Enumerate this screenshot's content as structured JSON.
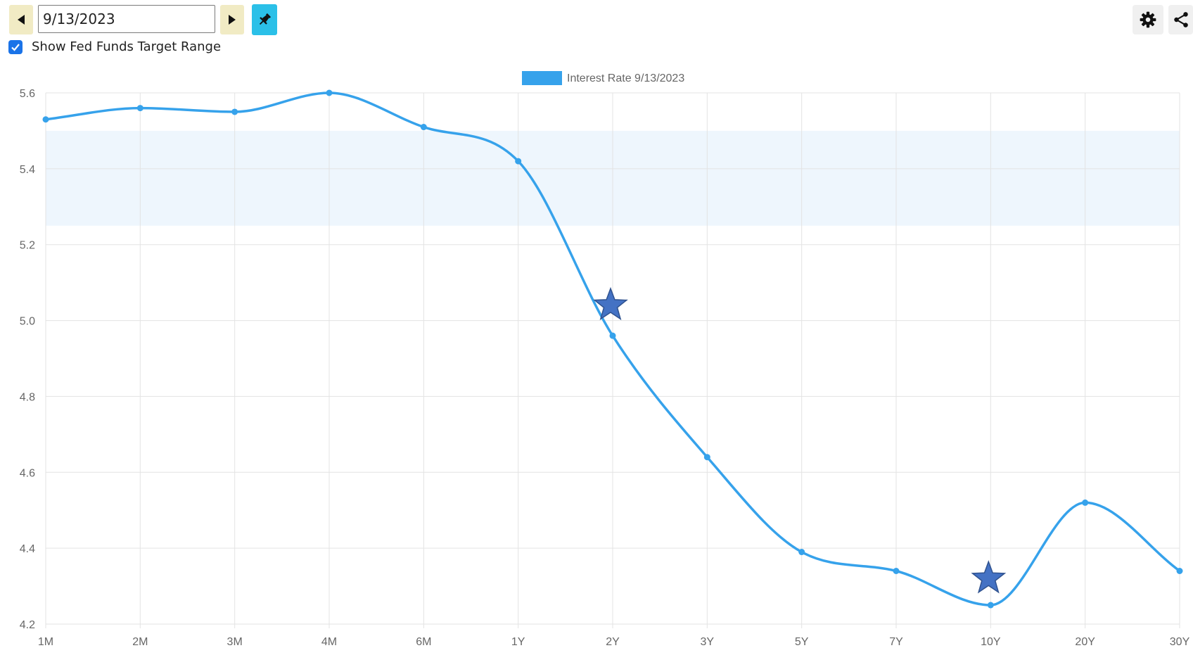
{
  "toolbar": {
    "date_value": "9/13/2023",
    "checkbox_label": "Show Fed Funds Target Range",
    "checkbox_checked": true,
    "nav_color": "#f1ebc4",
    "pin_color": "#2bc0e8"
  },
  "chart_data": {
    "type": "line",
    "categories": [
      "1M",
      "2M",
      "3M",
      "4M",
      "6M",
      "1Y",
      "2Y",
      "3Y",
      "5Y",
      "7Y",
      "10Y",
      "20Y",
      "30Y"
    ],
    "series": [
      {
        "name": "Interest Rate 9/13/2023",
        "values": [
          5.53,
          5.56,
          5.55,
          5.6,
          5.51,
          5.42,
          4.96,
          4.64,
          4.39,
          4.34,
          4.25,
          4.52,
          4.34
        ],
        "color": "#36a2eb"
      }
    ],
    "y_ticks": [
      "5.6",
      "5.4",
      "5.2",
      "5.0",
      "4.8",
      "4.6",
      "4.4",
      "4.2"
    ],
    "ylim": [
      4.2,
      5.6
    ],
    "grid": true,
    "legend_position": "top-center",
    "fed_funds_target_range": [
      5.25,
      5.5
    ],
    "band_color": "#eef6fd",
    "star_markers": [
      {
        "category": "2Y",
        "value": 5.04
      },
      {
        "category": "10Y",
        "value": 4.32
      }
    ],
    "star_color": "#4472c4"
  }
}
